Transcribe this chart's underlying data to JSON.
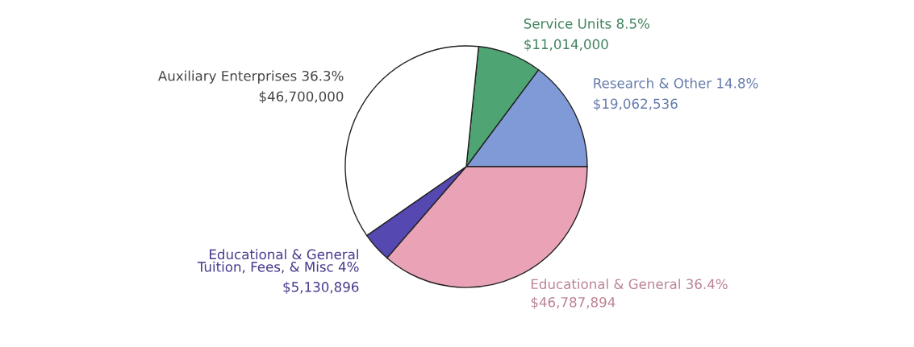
{
  "chart_data": {
    "type": "pie",
    "categories": [
      "Research & Other 14.8%",
      "Service Units 8.5%",
      "Auxiliary Enterprises 36.3%",
      "Educational & General\nTuition, Fees, & Misc 4%",
      "Educational & General 36.4%"
    ],
    "values": [
      19062536,
      11014000,
      46700000,
      5130896,
      46787894
    ],
    "value_labels": [
      "$19,062,536",
      "$11,014,000",
      "$46,700,000",
      "$5,130,896",
      "$46,787,894"
    ],
    "colors": [
      "#7f9ad6",
      "#4fa474",
      "#ffffff",
      "#5548b0",
      "#eaa3b6"
    ]
  }
}
